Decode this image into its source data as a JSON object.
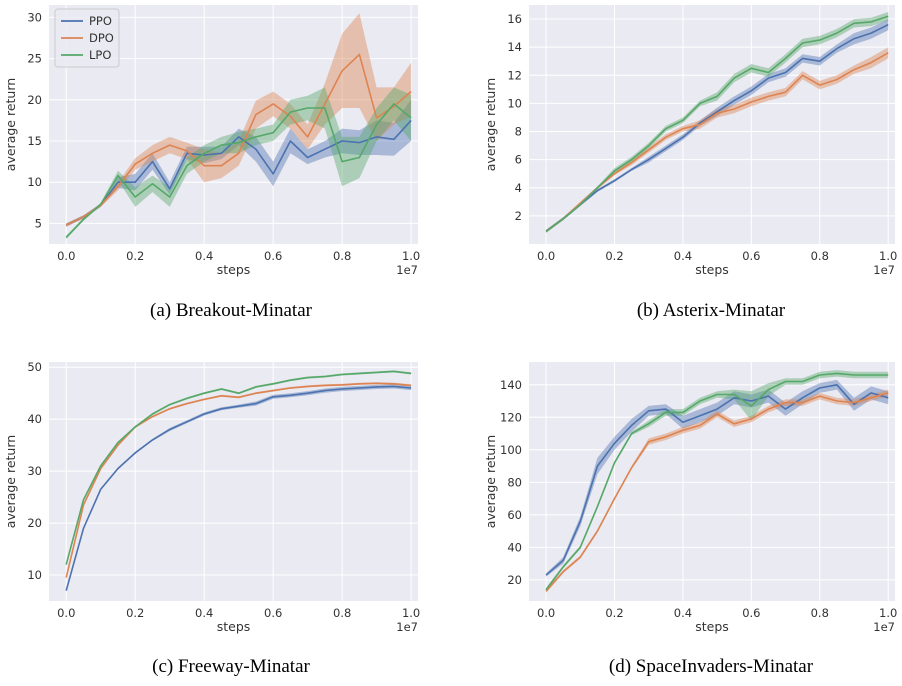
{
  "colors": {
    "PPO": "#4c72b0",
    "DPO": "#dd8452",
    "LPO": "#55a868",
    "panel_bg": "#eaeaf2",
    "grid": "#ffffff"
  },
  "chart_data": [
    {
      "type": "line",
      "caption": "(a) Breakout-Minatar",
      "xlabel": "steps",
      "ylabel": "average return",
      "x_offset_label": "1e7",
      "xlim": [
        -0.05,
        1.02
      ],
      "ylim": [
        2.5,
        31.5
      ],
      "xticks": [
        0.0,
        0.2,
        0.4,
        0.6,
        0.8,
        1.0
      ],
      "xtick_labels": [
        "0.0",
        "0.2",
        "0.4",
        "0.6",
        "0.8",
        "1.0"
      ],
      "yticks": [
        5,
        10,
        15,
        20,
        25,
        30
      ],
      "ytick_labels": [
        "5",
        "10",
        "15",
        "20",
        "25",
        "30"
      ],
      "legend": {
        "placement": "top-left",
        "entries": [
          "PPO",
          "DPO",
          "LPO"
        ]
      },
      "x": [
        0,
        0.05,
        0.1,
        0.15,
        0.2,
        0.25,
        0.3,
        0.35,
        0.4,
        0.45,
        0.5,
        0.55,
        0.6,
        0.65,
        0.7,
        0.75,
        0.8,
        0.85,
        0.9,
        0.95,
        1.0
      ],
      "series": [
        {
          "name": "PPO",
          "values": [
            4.8,
            5.8,
            7.2,
            10.0,
            10.0,
            12.5,
            9.2,
            13.5,
            13.3,
            13.5,
            15.5,
            14.0,
            11.0,
            15.0,
            13.0,
            14.0,
            15.0,
            14.8,
            15.5,
            15.2,
            17.5
          ],
          "lower": [
            4.6,
            5.6,
            7.0,
            9.3,
            9.0,
            11.5,
            8.5,
            12.8,
            12.3,
            12.8,
            14.5,
            12.5,
            9.5,
            13.5,
            12.2,
            13.0,
            13.5,
            13.3,
            13.3,
            13.2,
            15.0
          ],
          "upper": [
            5.0,
            6.0,
            7.4,
            10.6,
            11.0,
            13.5,
            10.0,
            14.3,
            14.3,
            14.3,
            16.5,
            15.5,
            12.5,
            16.5,
            14.0,
            15.0,
            16.5,
            16.3,
            17.5,
            17.2,
            20.0
          ]
        },
        {
          "name": "DPO",
          "values": [
            4.8,
            5.8,
            7.2,
            9.5,
            12.2,
            13.5,
            14.5,
            13.8,
            12.0,
            12.0,
            13.5,
            18.2,
            19.5,
            18.0,
            15.5,
            19.5,
            23.5,
            25.5,
            17.8,
            19.2,
            21.0
          ],
          "lower": [
            4.6,
            5.6,
            7.0,
            9.0,
            11.5,
            12.5,
            13.5,
            12.8,
            10.0,
            10.5,
            12.0,
            16.5,
            18.0,
            16.5,
            14.0,
            17.0,
            19.0,
            19.0,
            15.0,
            17.0,
            18.0
          ],
          "upper": [
            5.0,
            6.0,
            7.4,
            10.0,
            12.9,
            14.5,
            15.5,
            14.8,
            14.0,
            13.5,
            15.0,
            19.9,
            21.0,
            19.5,
            17.0,
            22.0,
            28.0,
            30.5,
            21.5,
            21.5,
            24.5
          ]
        },
        {
          "name": "LPO",
          "values": [
            3.3,
            5.5,
            7.3,
            10.8,
            8.2,
            9.8,
            8.2,
            12.0,
            13.5,
            14.5,
            14.8,
            15.5,
            16.0,
            18.5,
            19.0,
            19.0,
            12.5,
            13.0,
            17.0,
            19.5,
            17.8
          ],
          "lower": [
            3.1,
            5.3,
            7.1,
            10.2,
            7.0,
            8.8,
            7.0,
            11.0,
            12.5,
            13.5,
            13.5,
            14.5,
            15.0,
            17.0,
            17.5,
            16.5,
            9.5,
            10.5,
            15.0,
            17.5,
            15.0
          ],
          "upper": [
            3.5,
            5.7,
            7.5,
            11.4,
            9.4,
            10.8,
            9.4,
            13.0,
            14.5,
            15.5,
            16.1,
            16.5,
            17.0,
            20.0,
            20.5,
            21.5,
            15.5,
            15.5,
            19.0,
            21.5,
            20.6
          ]
        }
      ]
    },
    {
      "type": "line",
      "caption": "(b) Asterix-Minatar",
      "xlabel": "steps",
      "ylabel": "average return",
      "x_offset_label": "1e7",
      "xlim": [
        -0.05,
        1.02
      ],
      "ylim": [
        0,
        17
      ],
      "xticks": [
        0.0,
        0.2,
        0.4,
        0.6,
        0.8,
        1.0
      ],
      "xtick_labels": [
        "0.0",
        "0.2",
        "0.4",
        "0.6",
        "0.8",
        "1.0"
      ],
      "yticks": [
        2,
        4,
        6,
        8,
        10,
        12,
        14,
        16
      ],
      "ytick_labels": [
        "2",
        "4",
        "6",
        "8",
        "10",
        "12",
        "14",
        "16"
      ],
      "x": [
        0,
        0.05,
        0.1,
        0.15,
        0.2,
        0.25,
        0.3,
        0.35,
        0.4,
        0.45,
        0.5,
        0.55,
        0.6,
        0.65,
        0.7,
        0.75,
        0.8,
        0.85,
        0.9,
        0.95,
        1.0
      ],
      "series": [
        {
          "name": "PPO",
          "values": [
            0.9,
            1.8,
            2.8,
            3.8,
            4.5,
            5.3,
            6.0,
            6.8,
            7.6,
            8.6,
            9.4,
            10.2,
            10.9,
            11.8,
            12.2,
            13.2,
            13.0,
            13.9,
            14.6,
            15.0,
            15.6
          ],
          "lower": [
            0.8,
            1.7,
            2.7,
            3.7,
            4.4,
            5.2,
            5.8,
            6.6,
            7.4,
            8.4,
            9.1,
            9.9,
            10.6,
            11.5,
            11.9,
            12.9,
            12.7,
            13.6,
            14.2,
            14.6,
            15.2
          ],
          "upper": [
            1.0,
            1.9,
            2.9,
            3.9,
            4.6,
            5.4,
            6.2,
            7.0,
            7.8,
            8.8,
            9.7,
            10.5,
            11.2,
            12.1,
            12.5,
            13.5,
            13.3,
            14.2,
            15.0,
            15.4,
            16.0
          ]
        },
        {
          "name": "DPO",
          "values": [
            0.9,
            1.8,
            2.9,
            4.0,
            5.0,
            5.8,
            6.7,
            7.6,
            8.2,
            8.5,
            9.3,
            9.6,
            10.1,
            10.5,
            10.8,
            12.0,
            11.3,
            11.7,
            12.4,
            12.9,
            13.6
          ],
          "lower": [
            0.8,
            1.7,
            2.8,
            3.9,
            4.9,
            5.6,
            6.5,
            7.4,
            8.0,
            8.2,
            9.0,
            9.3,
            9.8,
            10.2,
            10.5,
            11.7,
            11.0,
            11.4,
            12.1,
            12.5,
            13.2
          ],
          "upper": [
            1.0,
            1.9,
            3.0,
            4.1,
            5.1,
            6.0,
            6.9,
            7.8,
            8.4,
            8.8,
            9.6,
            9.9,
            10.4,
            10.8,
            11.1,
            12.3,
            11.6,
            12.0,
            12.7,
            13.3,
            14.0
          ]
        },
        {
          "name": "LPO",
          "values": [
            0.9,
            1.8,
            2.8,
            4.0,
            5.2,
            6.0,
            7.0,
            8.2,
            8.8,
            10.0,
            10.5,
            11.8,
            12.5,
            12.2,
            13.2,
            14.3,
            14.5,
            15.0,
            15.7,
            15.8,
            16.2
          ],
          "lower": [
            0.8,
            1.7,
            2.7,
            3.9,
            5.0,
            5.8,
            6.8,
            8.0,
            8.6,
            9.8,
            10.2,
            11.5,
            12.2,
            11.9,
            12.9,
            14.0,
            14.2,
            14.7,
            15.4,
            15.5,
            15.9
          ],
          "upper": [
            1.0,
            1.9,
            2.9,
            4.1,
            5.4,
            6.2,
            7.2,
            8.4,
            9.0,
            10.2,
            10.8,
            12.1,
            12.8,
            12.5,
            13.5,
            14.6,
            14.8,
            15.3,
            16.0,
            16.1,
            16.5
          ]
        }
      ]
    },
    {
      "type": "line",
      "caption": "(c) Freeway-Minatar",
      "xlabel": "steps",
      "ylabel": "average return",
      "x_offset_label": "1e7",
      "xlim": [
        -0.05,
        1.02
      ],
      "ylim": [
        5,
        51
      ],
      "xticks": [
        0.0,
        0.2,
        0.4,
        0.6,
        0.8,
        1.0
      ],
      "xtick_labels": [
        "0.0",
        "0.2",
        "0.4",
        "0.6",
        "0.8",
        "1.0"
      ],
      "yticks": [
        10,
        20,
        30,
        40,
        50
      ],
      "ytick_labels": [
        "10",
        "20",
        "30",
        "40",
        "50"
      ],
      "x": [
        0,
        0.05,
        0.1,
        0.15,
        0.2,
        0.25,
        0.3,
        0.35,
        0.4,
        0.45,
        0.5,
        0.55,
        0.6,
        0.65,
        0.7,
        0.75,
        0.8,
        0.85,
        0.9,
        0.95,
        1.0
      ],
      "series": [
        {
          "name": "PPO",
          "values": [
            7.0,
            19.0,
            26.5,
            30.5,
            33.5,
            36.0,
            38.0,
            39.5,
            41.0,
            42.0,
            42.5,
            43.0,
            44.3,
            44.6,
            45.0,
            45.5,
            45.8,
            46.0,
            46.2,
            46.3,
            46.0
          ],
          "lower": [
            6.8,
            18.8,
            26.3,
            30.3,
            33.3,
            35.8,
            37.7,
            39.2,
            40.7,
            41.7,
            42.2,
            42.6,
            43.9,
            44.2,
            44.6,
            45.1,
            45.4,
            45.6,
            45.8,
            45.9,
            45.6
          ],
          "upper": [
            7.2,
            19.2,
            26.7,
            30.7,
            33.7,
            36.2,
            38.3,
            39.8,
            41.3,
            42.3,
            42.8,
            43.4,
            44.7,
            45.0,
            45.4,
            45.9,
            46.2,
            46.4,
            46.6,
            46.7,
            46.4
          ]
        },
        {
          "name": "DPO",
          "values": [
            9.5,
            23.5,
            30.5,
            35.0,
            38.5,
            40.5,
            42.0,
            43.0,
            43.8,
            44.5,
            44.2,
            45.0,
            45.5,
            46.0,
            46.3,
            46.5,
            46.6,
            46.8,
            46.9,
            46.8,
            46.5
          ],
          "lower": [
            9.3,
            23.3,
            30.3,
            34.8,
            38.3,
            40.3,
            41.8,
            42.8,
            43.6,
            44.3,
            44.0,
            44.8,
            45.3,
            45.8,
            46.1,
            46.3,
            46.4,
            46.6,
            46.7,
            46.6,
            46.3
          ],
          "upper": [
            9.7,
            23.7,
            30.7,
            35.2,
            38.7,
            40.7,
            42.2,
            43.2,
            44.0,
            44.7,
            44.4,
            45.2,
            45.7,
            46.2,
            46.5,
            46.7,
            46.8,
            47.0,
            47.1,
            47.0,
            46.7
          ]
        },
        {
          "name": "LPO",
          "values": [
            12.0,
            24.5,
            31.0,
            35.5,
            38.5,
            41.0,
            42.8,
            44.0,
            45.0,
            45.8,
            45.0,
            46.2,
            46.8,
            47.5,
            48.0,
            48.2,
            48.6,
            48.8,
            49.0,
            49.2,
            48.8
          ],
          "lower": [
            11.8,
            24.3,
            30.8,
            35.3,
            38.3,
            40.8,
            42.6,
            43.8,
            44.8,
            45.6,
            44.8,
            46.0,
            46.6,
            47.3,
            47.8,
            48.0,
            48.4,
            48.6,
            48.8,
            49.0,
            48.6
          ],
          "upper": [
            12.2,
            24.7,
            31.2,
            35.7,
            38.7,
            41.2,
            43.0,
            44.2,
            45.2,
            46.0,
            45.2,
            46.4,
            47.0,
            47.7,
            48.2,
            48.4,
            48.8,
            49.0,
            49.2,
            49.4,
            49.0
          ]
        }
      ]
    },
    {
      "type": "line",
      "caption": "(d) SpaceInvaders-Minatar",
      "xlabel": "steps",
      "ylabel": "average return",
      "x_offset_label": "1e7",
      "xlim": [
        -0.05,
        1.02
      ],
      "ylim": [
        7,
        154
      ],
      "xticks": [
        0.0,
        0.2,
        0.4,
        0.6,
        0.8,
        1.0
      ],
      "xtick_labels": [
        "0.0",
        "0.2",
        "0.4",
        "0.6",
        "0.8",
        "1.0"
      ],
      "yticks": [
        20,
        40,
        60,
        80,
        100,
        120,
        140
      ],
      "ytick_labels": [
        "20",
        "40",
        "60",
        "80",
        "100",
        "120",
        "140"
      ],
      "x": [
        0,
        0.05,
        0.1,
        0.15,
        0.2,
        0.25,
        0.3,
        0.35,
        0.4,
        0.45,
        0.5,
        0.55,
        0.6,
        0.65,
        0.7,
        0.75,
        0.8,
        0.85,
        0.9,
        0.95,
        1.0
      ],
      "series": [
        {
          "name": "PPO",
          "values": [
            23,
            32,
            56,
            90,
            104,
            115,
            124,
            125,
            117,
            121,
            125,
            132,
            130,
            133,
            125,
            132,
            138,
            140,
            128,
            135,
            132
          ],
          "lower": [
            22,
            30,
            53,
            85,
            100,
            111,
            121,
            122,
            113,
            117,
            121,
            128,
            126,
            129,
            121,
            128,
            135,
            137,
            124,
            131,
            128
          ],
          "upper": [
            24,
            34,
            59,
            95,
            108,
            119,
            127,
            128,
            121,
            125,
            129,
            136,
            134,
            137,
            129,
            136,
            141,
            143,
            132,
            139,
            136
          ]
        },
        {
          "name": "DPO",
          "values": [
            13,
            25,
            34,
            50,
            70,
            89,
            105,
            108,
            112,
            115,
            122,
            116,
            119,
            125,
            129,
            129,
            133,
            130,
            129,
            132,
            135
          ],
          "lower": [
            12,
            24,
            33,
            49,
            69,
            88,
            103,
            106,
            110,
            113,
            120,
            114,
            117,
            123,
            127,
            127,
            131,
            128,
            127,
            130,
            133
          ],
          "upper": [
            14,
            26,
            35,
            51,
            71,
            90,
            107,
            110,
            114,
            117,
            124,
            118,
            121,
            127,
            131,
            131,
            135,
            132,
            131,
            134,
            137
          ]
        },
        {
          "name": "LPO",
          "values": [
            14,
            28,
            40,
            65,
            92,
            110,
            116,
            123,
            123,
            130,
            134,
            134,
            127,
            137,
            142,
            142,
            146,
            147,
            146,
            146,
            146
          ],
          "lower": [
            13,
            27,
            39,
            64,
            91,
            109,
            114,
            121,
            121,
            128,
            132,
            131,
            118,
            133,
            140,
            140,
            144,
            145,
            144,
            144,
            144
          ],
          "upper": [
            15,
            29,
            41,
            66,
            93,
            111,
            118,
            125,
            125,
            132,
            136,
            137,
            136,
            141,
            144,
            144,
            148,
            149,
            148,
            148,
            148
          ]
        }
      ]
    }
  ]
}
